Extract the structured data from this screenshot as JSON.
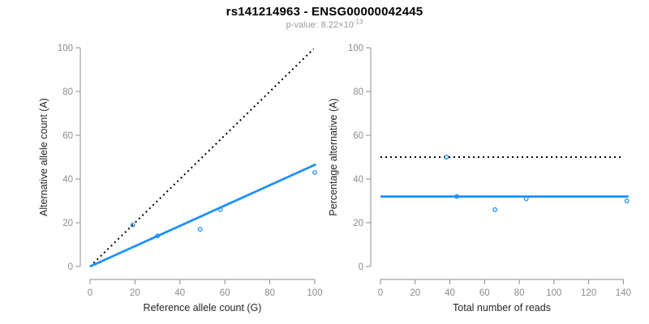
{
  "header": {
    "title": "rs141214963 - ENSG00000042445",
    "subtitle": {
      "label": "p-value:",
      "base": "8.22×10",
      "exponent": "-13"
    }
  },
  "colors": {
    "accent_blue": "#1E90FF",
    "reference_black": "#000000",
    "axis_gray": "#8C8C8C",
    "tick_label_gray": "#8C8C8C",
    "axis_title_dark": "#262626",
    "subtitle_gray": "#999999",
    "background": "#FFFFFF"
  },
  "chart_data": [
    {
      "name": "allele-counts-panel",
      "type": "scatter",
      "xlabel": "Reference allele count (G)",
      "ylabel": "Alternative allele count (A)",
      "xlim": [
        0,
        100
      ],
      "ylim": [
        0,
        100
      ],
      "xticks": [
        0,
        20,
        40,
        60,
        80,
        100
      ],
      "yticks": [
        0,
        20,
        40,
        60,
        80,
        100
      ],
      "grid": false,
      "legend": false,
      "points": [
        {
          "x": 19,
          "y": 19
        },
        {
          "x": 30,
          "y": 14
        },
        {
          "x": 49,
          "y": 17
        },
        {
          "x": 58,
          "y": 26
        },
        {
          "x": 100,
          "y": 43
        }
      ],
      "lines": [
        {
          "name": "identity-line",
          "style": "dotted",
          "color": "#000000",
          "x": [
            0,
            99.5
          ],
          "y": [
            0,
            99.5
          ]
        },
        {
          "name": "fit-line",
          "style": "solid",
          "color": "#1E90FF",
          "x": [
            0,
            100.5
          ],
          "y": [
            0,
            46.7
          ]
        }
      ]
    },
    {
      "name": "percentage-panel",
      "type": "scatter",
      "xlabel": "Total number of reads",
      "ylabel": "Percentage alternative (A)",
      "xlim": [
        0,
        140
      ],
      "ylim": [
        0,
        100
      ],
      "xticks": [
        0,
        20,
        40,
        60,
        80,
        100,
        120,
        140
      ],
      "yticks": [
        0,
        20,
        40,
        60,
        80,
        100
      ],
      "grid": false,
      "legend": false,
      "points": [
        {
          "x": 38,
          "y": 50
        },
        {
          "x": 44,
          "y": 32
        },
        {
          "x": 66,
          "y": 26
        },
        {
          "x": 84,
          "y": 31
        },
        {
          "x": 142,
          "y": 30
        }
      ],
      "lines": [
        {
          "name": "expected-50pct-line",
          "style": "dotted",
          "color": "#000000",
          "x": [
            0,
            140
          ],
          "y": [
            50,
            50
          ]
        },
        {
          "name": "mean-percentage-line",
          "style": "solid",
          "color": "#1E90FF",
          "x": [
            0,
            143
          ],
          "y": [
            32,
            32
          ]
        }
      ]
    }
  ]
}
